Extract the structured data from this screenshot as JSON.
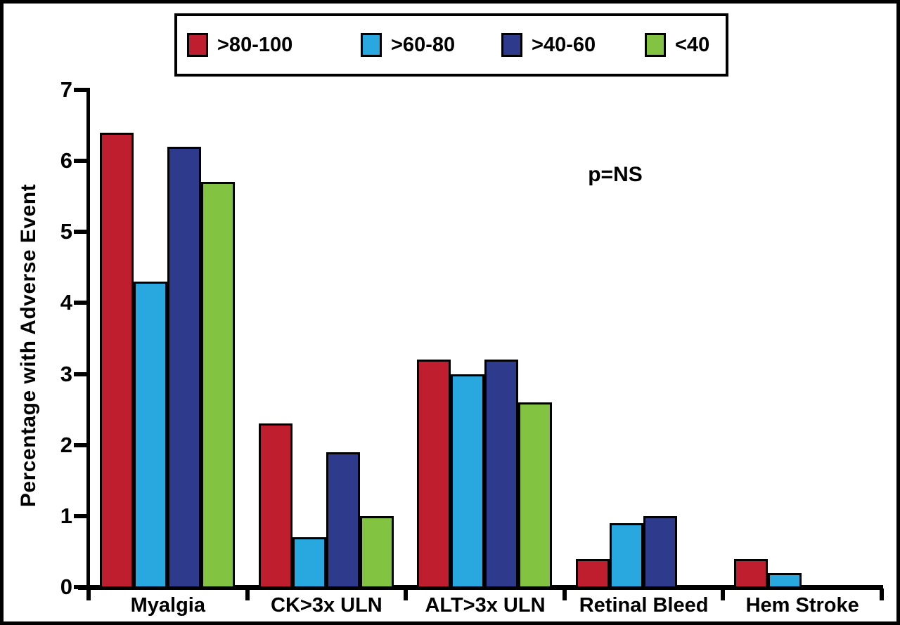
{
  "figure": {
    "annotation": "p=NS"
  },
  "chart_data": {
    "type": "bar",
    "title": "",
    "categories": [
      "Myalgia",
      "CK>3x ULN",
      "ALT>3x ULN",
      "Retinal Bleed",
      "Hem Stroke"
    ],
    "series": [
      {
        "name": ">80-100",
        "color": "#be1e2d",
        "values": [
          6.4,
          2.3,
          3.2,
          0.4,
          0.4
        ]
      },
      {
        "name": ">60-80",
        "color": "#29a8e0",
        "values": [
          4.3,
          0.7,
          3.0,
          0.9,
          0.2
        ]
      },
      {
        "name": ">40-60",
        "color": "#2e3a8c",
        "values": [
          6.2,
          1.9,
          3.2,
          1.0,
          0
        ]
      },
      {
        "name": "<40",
        "color": "#82c341",
        "values": [
          5.7,
          1.0,
          2.6,
          0,
          0
        ]
      }
    ],
    "xlabel": "",
    "ylabel": "Percentage with Adverse Event",
    "ylim": [
      0,
      7
    ],
    "yticks": [
      0,
      1,
      2,
      3,
      4,
      5,
      6,
      7
    ],
    "annotation": "p=NS",
    "legend_position": "top-center",
    "grid": false,
    "bar_outline_color": "#000000",
    "background": "#ffffff"
  }
}
